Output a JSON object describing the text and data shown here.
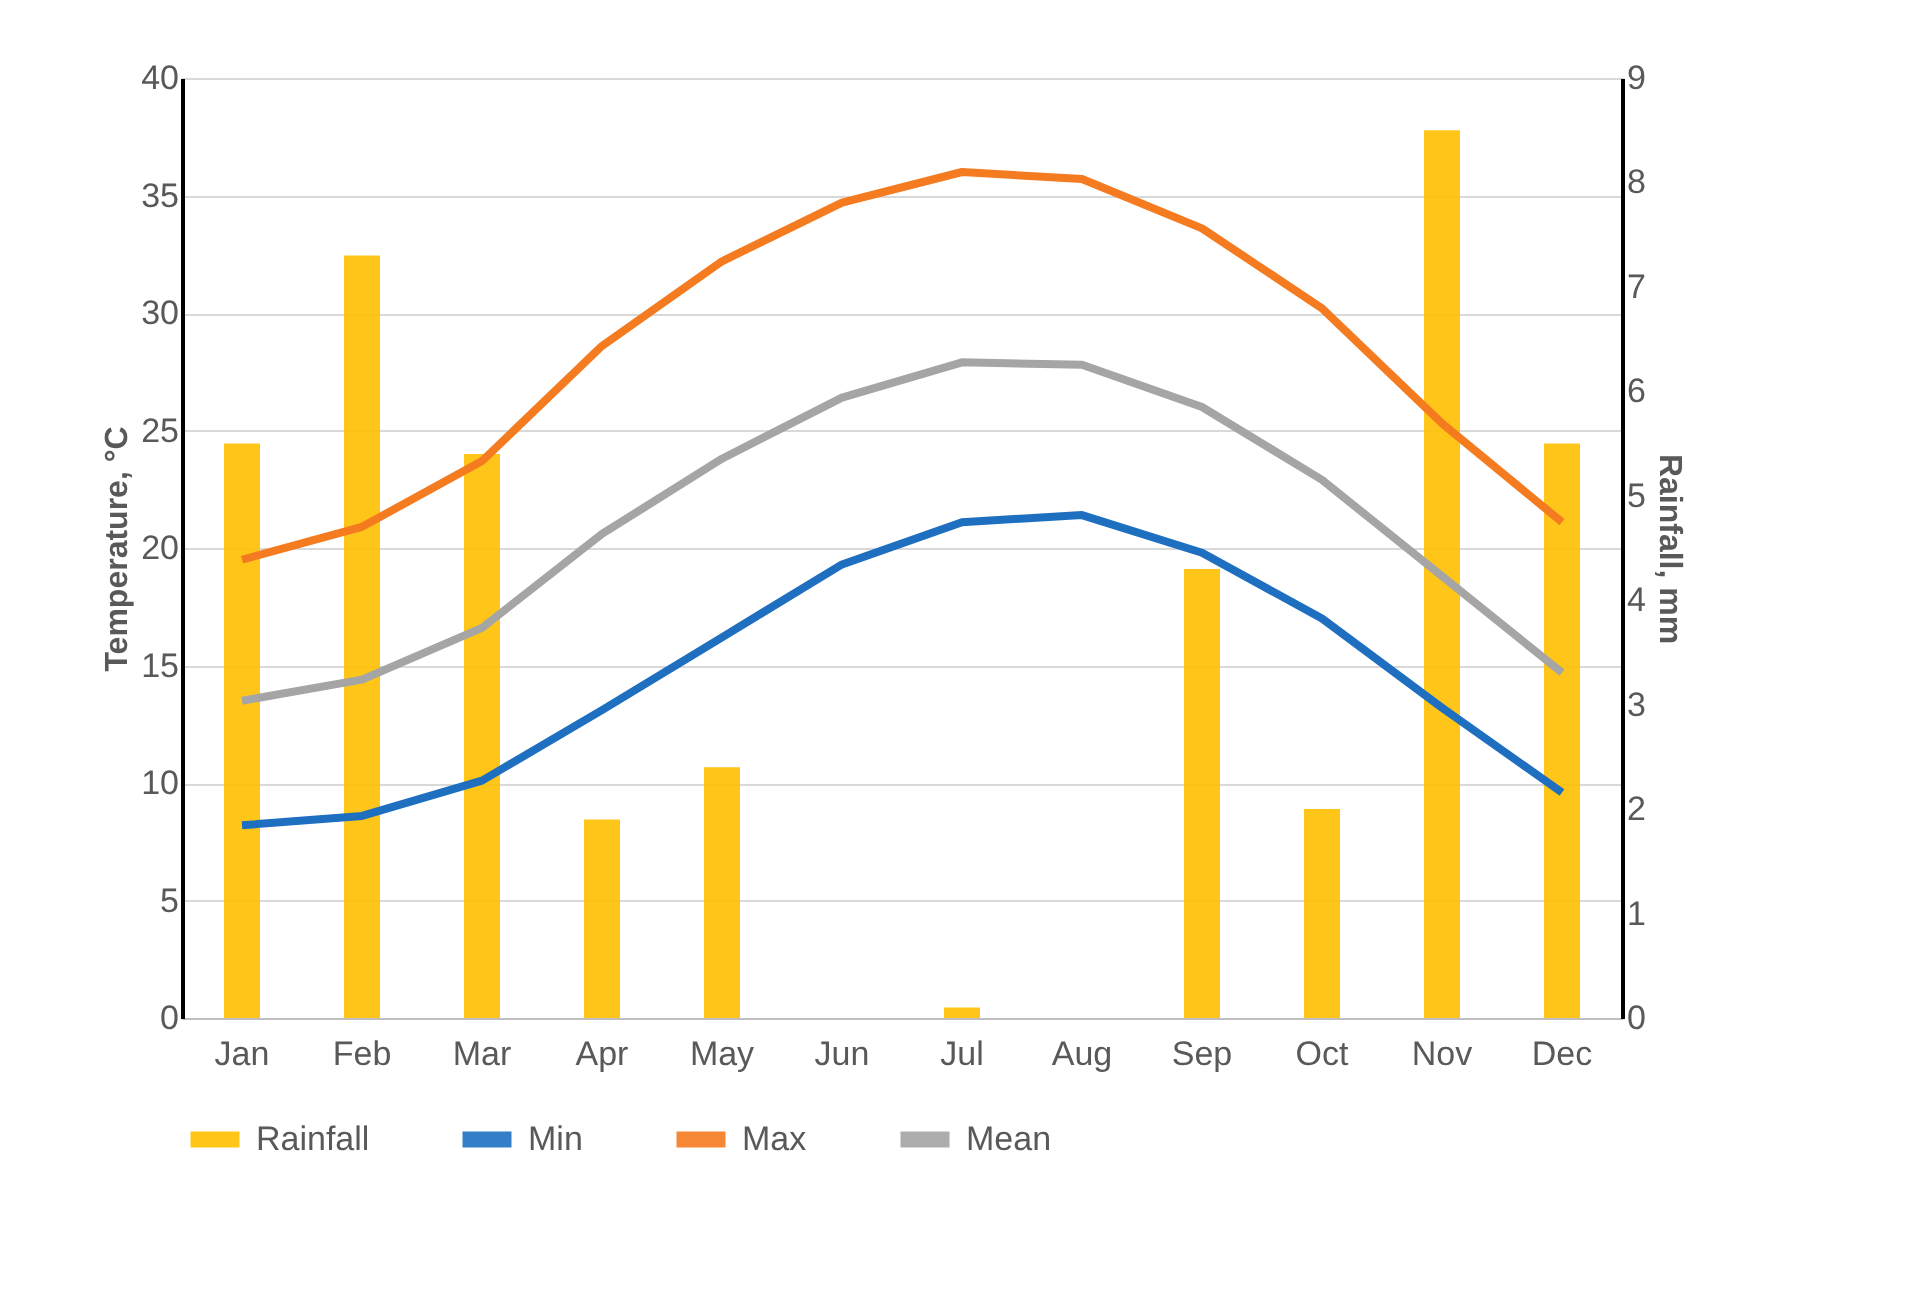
{
  "chart_data": {
    "type": "line",
    "xlabel": null,
    "ylabel": "Temperature, °C",
    "y2label": "Rainfall, mm",
    "categories": [
      "Jan",
      "Feb",
      "Mar",
      "Apr",
      "May",
      "Jun",
      "Jul",
      "Aug",
      "Sep",
      "Oct",
      "Nov",
      "Dec"
    ],
    "series": [
      {
        "name": "Rainfall",
        "type": "bar",
        "axis": "y2",
        "color": "#ffc000",
        "values": [
          5.5,
          7.3,
          5.4,
          1.9,
          2.4,
          0,
          0.1,
          0,
          4.3,
          2.0,
          8.5,
          5.5
        ]
      },
      {
        "name": "Min",
        "color": "#1f6fc1",
        "values": [
          8.2,
          8.6,
          10.1,
          13.1,
          16.2,
          19.3,
          21.1,
          21.4,
          19.8,
          17.0,
          13.2,
          9.6
        ]
      },
      {
        "name": "Max",
        "color": "#f47b20",
        "values": [
          19.5,
          20.9,
          23.7,
          28.6,
          32.2,
          34.7,
          36.0,
          35.7,
          33.6,
          30.2,
          25.3,
          21.1
        ]
      },
      {
        "name": "Mean",
        "color": "#a5a5a5",
        "values": [
          13.5,
          14.4,
          16.6,
          20.6,
          23.8,
          26.4,
          27.9,
          27.8,
          26.0,
          22.9,
          18.8,
          14.7
        ]
      }
    ],
    "ylim": [
      0,
      40
    ],
    "yticks": [
      0,
      5,
      10,
      15,
      20,
      25,
      30,
      35,
      40
    ],
    "y2lim": [
      0,
      9
    ],
    "y2ticks": [
      0,
      1,
      2,
      3,
      4,
      5,
      6,
      7,
      8,
      9
    ],
    "grid": "y",
    "legend": "bottom",
    "marker": "none",
    "line_style": "solid"
  }
}
